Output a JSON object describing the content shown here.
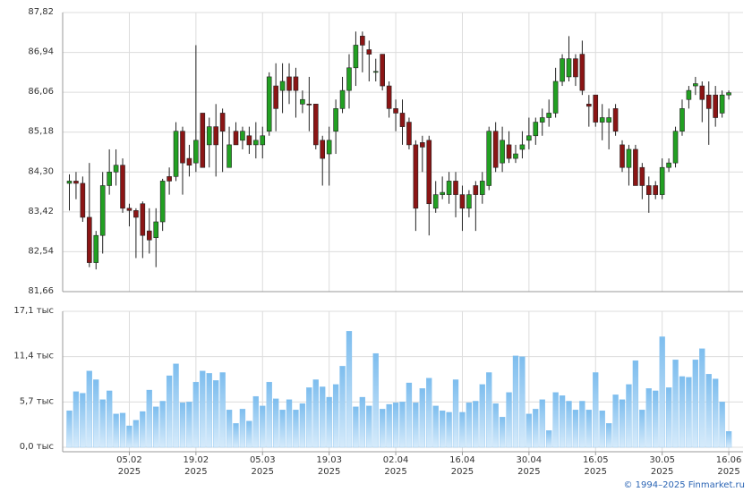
{
  "chart_data": [
    {
      "type": "candlestick",
      "up_color": "#22a022",
      "down_color": "#8b1515",
      "grid": true,
      "ylim": [
        81.66,
        87.82
      ],
      "yticks": [
        {
          "value": 87.82,
          "label": "87,82"
        },
        {
          "value": 86.94,
          "label": "86,94"
        },
        {
          "value": 86.06,
          "label": "86,06"
        },
        {
          "value": 85.18,
          "label": "85,18"
        },
        {
          "value": 84.3,
          "label": "84,30"
        },
        {
          "value": 83.42,
          "label": "83,42"
        },
        {
          "value": 82.54,
          "label": "82,54"
        },
        {
          "value": 81.66,
          "label": "81,66"
        }
      ],
      "open": [
        84.05,
        84.1,
        84.05,
        83.3,
        82.3,
        82.9,
        84.0,
        84.3,
        84.45,
        83.5,
        83.45,
        83.6,
        83.0,
        82.85,
        83.2,
        84.2,
        84.2,
        85.2,
        84.6,
        84.5,
        85.6,
        84.9,
        85.3,
        85.6,
        84.4,
        85.2,
        85.0,
        85.1,
        84.9,
        84.9,
        85.2,
        86.2,
        86.1,
        86.4,
        86.4,
        85.8,
        85.8,
        85.8,
        85.0,
        84.7,
        85.2,
        85.7,
        86.1,
        86.6,
        87.3,
        87.0,
        86.5,
        86.9,
        86.2,
        85.7,
        85.6,
        85.4,
        84.9,
        84.95,
        85.0,
        83.5,
        83.8,
        83.8,
        84.1,
        83.8,
        83.5,
        84.0,
        83.8,
        84.0,
        85.2,
        84.5,
        84.9,
        84.6,
        84.8,
        85.0,
        85.1,
        85.4,
        85.5,
        85.6,
        86.3,
        86.4,
        86.8,
        86.9,
        85.8,
        86.0,
        85.4,
        85.4,
        85.7,
        84.9,
        84.4,
        84.8,
        84.4,
        84.0,
        84.0,
        83.8,
        84.4,
        84.5,
        85.2,
        85.9,
        86.2,
        86.2,
        86.0,
        86.0,
        85.6,
        86.0
      ],
      "high": [
        84.25,
        84.3,
        84.2,
        84.5,
        83.0,
        84.3,
        84.8,
        84.8,
        84.6,
        83.6,
        83.5,
        83.65,
        83.5,
        83.5,
        84.15,
        84.4,
        85.4,
        85.3,
        84.9,
        87.1,
        85.6,
        85.5,
        85.8,
        85.7,
        85.3,
        85.4,
        85.3,
        85.3,
        85.4,
        85.3,
        86.5,
        86.7,
        86.7,
        86.7,
        86.6,
        86.1,
        86.4,
        85.8,
        85.1,
        85.3,
        85.9,
        86.4,
        86.9,
        87.4,
        87.4,
        87.2,
        86.8,
        86.9,
        86.3,
        85.9,
        85.9,
        85.5,
        85.0,
        85.1,
        85.1,
        84.1,
        84.2,
        84.3,
        84.3,
        84.0,
        83.9,
        84.1,
        84.3,
        85.3,
        85.4,
        85.3,
        85.2,
        84.9,
        85.2,
        85.5,
        85.5,
        85.7,
        85.9,
        86.6,
        86.9,
        87.3,
        86.9,
        87.2,
        86.0,
        86.0,
        85.8,
        85.7,
        85.8,
        85.0,
        84.9,
        84.9,
        84.5,
        84.2,
        84.1,
        84.6,
        84.6,
        85.3,
        85.9,
        86.2,
        86.4,
        86.3,
        86.3,
        86.2,
        86.1,
        86.1
      ],
      "low": [
        83.45,
        83.7,
        83.2,
        82.2,
        82.15,
        82.5,
        83.8,
        84.0,
        83.4,
        83.1,
        82.4,
        82.4,
        82.5,
        82.2,
        83.0,
        83.8,
        84.1,
        83.8,
        84.2,
        84.3,
        84.4,
        84.4,
        84.2,
        84.3,
        84.4,
        84.9,
        84.8,
        84.7,
        84.6,
        84.6,
        85.1,
        85.2,
        85.6,
        85.8,
        85.5,
        85.6,
        85.2,
        84.8,
        84.0,
        84.0,
        84.7,
        85.6,
        85.7,
        86.2,
        86.5,
        86.3,
        86.3,
        86.1,
        85.5,
        85.2,
        84.9,
        84.8,
        83.0,
        84.3,
        82.9,
        83.4,
        83.7,
        83.6,
        83.3,
        83.0,
        83.3,
        83.0,
        83.6,
        83.9,
        84.3,
        84.3,
        84.5,
        84.5,
        84.6,
        84.8,
        84.9,
        85.1,
        85.3,
        85.5,
        86.2,
        86.3,
        86.2,
        86.0,
        85.3,
        85.3,
        85.0,
        84.8,
        85.1,
        84.3,
        84.0,
        84.0,
        83.7,
        83.4,
        83.7,
        83.7,
        84.3,
        84.4,
        85.1,
        85.7,
        86.0,
        85.4,
        84.9,
        85.3,
        85.5,
        85.9
      ],
      "close": [
        84.1,
        84.05,
        83.3,
        82.3,
        82.9,
        84.0,
        84.3,
        84.45,
        83.5,
        83.45,
        83.3,
        82.9,
        82.8,
        83.2,
        84.1,
        84.1,
        85.2,
        84.5,
        84.45,
        85.0,
        84.4,
        85.3,
        84.9,
        85.2,
        84.9,
        84.9,
        85.2,
        84.9,
        85.0,
        85.1,
        86.4,
        85.7,
        86.3,
        86.1,
        86.1,
        85.9,
        85.78,
        84.9,
        84.6,
        85.0,
        85.7,
        86.1,
        86.6,
        87.1,
        87.1,
        86.9,
        86.52,
        86.2,
        85.7,
        85.6,
        85.3,
        84.9,
        83.5,
        84.85,
        83.6,
        83.8,
        83.85,
        84.1,
        83.8,
        83.5,
        83.8,
        83.8,
        84.1,
        85.2,
        84.4,
        85.0,
        84.6,
        84.7,
        84.9,
        85.1,
        85.4,
        85.5,
        85.6,
        86.3,
        86.8,
        86.8,
        86.4,
        86.1,
        85.75,
        85.4,
        85.5,
        85.5,
        85.2,
        84.4,
        84.8,
        84.0,
        84.0,
        83.8,
        83.8,
        84.4,
        84.5,
        85.2,
        85.7,
        86.1,
        86.25,
        85.9,
        85.7,
        85.5,
        86.0,
        86.05
      ]
    },
    {
      "type": "bar",
      "color": "#7dbdee",
      "grid": true,
      "ylim": [
        0,
        17.1
      ],
      "yticks": [
        {
          "value": 0,
          "label": "0,0 тыс"
        },
        {
          "value": 5.7,
          "label": "5,7 тыс"
        },
        {
          "value": 11.4,
          "label": "11,4 тыс"
        },
        {
          "value": 17.1,
          "label": "17,1 тыс"
        }
      ],
      "year_label": "2025",
      "categories": [
        null,
        null,
        null,
        null,
        null,
        null,
        null,
        null,
        null,
        "05.02",
        null,
        null,
        null,
        null,
        null,
        null,
        null,
        null,
        null,
        "19.02",
        null,
        null,
        null,
        null,
        null,
        null,
        null,
        null,
        null,
        "05.03",
        null,
        null,
        null,
        null,
        null,
        null,
        null,
        null,
        null,
        "19.03",
        null,
        null,
        null,
        null,
        null,
        null,
        null,
        null,
        null,
        "02.04",
        null,
        null,
        null,
        null,
        null,
        null,
        null,
        null,
        null,
        "16.04",
        null,
        null,
        null,
        null,
        null,
        null,
        null,
        null,
        null,
        "30.04",
        null,
        null,
        null,
        null,
        null,
        null,
        null,
        null,
        null,
        "16.05",
        null,
        null,
        null,
        null,
        null,
        null,
        null,
        null,
        null,
        "30.05",
        null,
        null,
        null,
        null,
        null,
        null,
        null,
        null,
        null,
        "16.06"
      ],
      "values": [
        4.6,
        7.0,
        6.8,
        9.6,
        8.5,
        6.0,
        7.1,
        4.2,
        4.3,
        2.7,
        3.4,
        4.5,
        7.2,
        5.1,
        5.8,
        9.0,
        10.5,
        5.6,
        5.7,
        8.2,
        9.6,
        9.3,
        8.4,
        9.4,
        4.7,
        3.0,
        4.8,
        3.3,
        6.4,
        5.2,
        8.2,
        6.1,
        4.7,
        6.0,
        4.7,
        5.5,
        7.5,
        8.5,
        7.6,
        6.3,
        7.9,
        10.2,
        14.6,
        5.1,
        6.3,
        5.2,
        11.8,
        4.8,
        5.4,
        5.6,
        5.7,
        8.1,
        5.6,
        7.4,
        8.7,
        5.2,
        4.6,
        4.4,
        8.5,
        4.4,
        5.6,
        5.8,
        7.9,
        9.4,
        5.5,
        3.8,
        6.9,
        11.5,
        11.4,
        4.2,
        4.8,
        6.0,
        2.1,
        6.9,
        6.5,
        5.8,
        4.7,
        5.8,
        4.7,
        9.4,
        4.6,
        3.0,
        6.6,
        6.0,
        7.9,
        10.9,
        4.7,
        7.4,
        7.1,
        13.9,
        7.5,
        11.0,
        8.9,
        8.8,
        11.0,
        12.4,
        9.2,
        8.6,
        5.7,
        2.0
      ]
    }
  ],
  "footer": "© 1994–2025 Finmarket.ru"
}
